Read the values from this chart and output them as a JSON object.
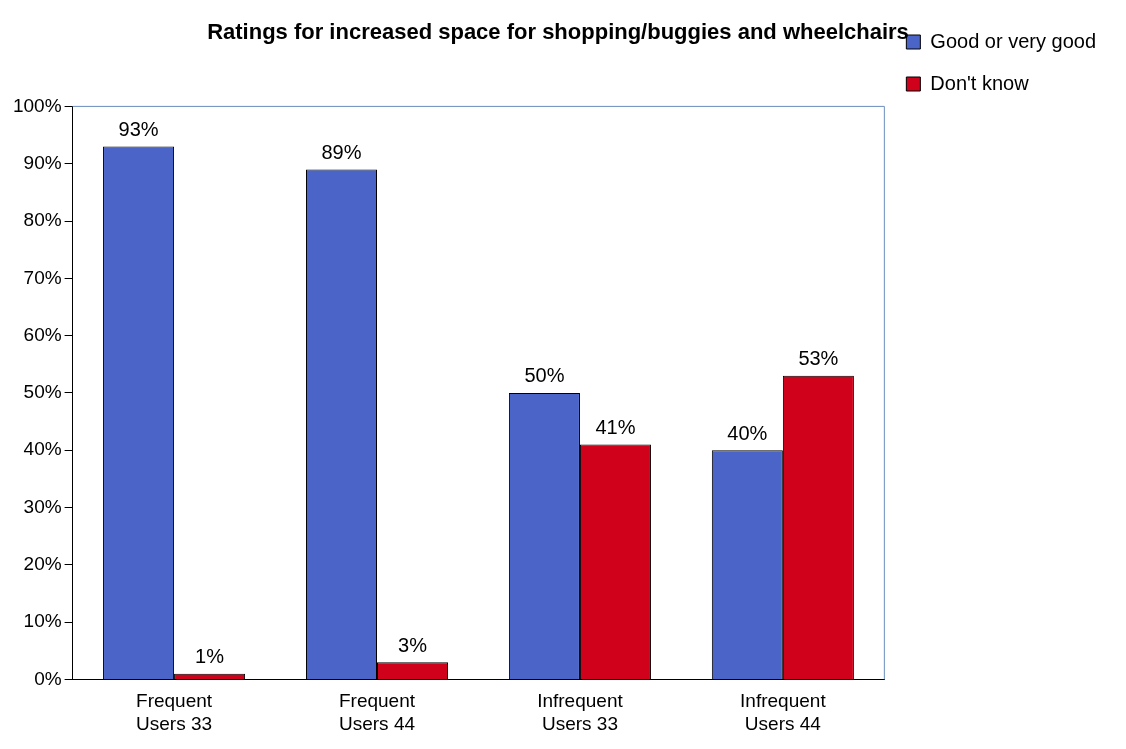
{
  "chart_data": {
    "type": "bar",
    "title": "Ratings for increased space for shopping/buggies and wheelchairs",
    "categories": [
      "Frequent Users 33",
      "Frequent Users 44",
      "Infrequent Users 33",
      "Infrequent Users 44"
    ],
    "series": [
      {
        "name": "Good or very good",
        "color": "#4a64c8",
        "values": [
          93,
          89,
          50,
          40
        ],
        "value_labels": [
          "93%",
          "89%",
          "50%",
          "40%"
        ]
      },
      {
        "name": "Don't know",
        "color": "#d0021b",
        "values": [
          1,
          3,
          41,
          53
        ],
        "value_labels": [
          "1%",
          "3%",
          "41%",
          "53%"
        ]
      }
    ],
    "ylim": [
      0,
      100
    ],
    "yticks": [
      {
        "value": 0,
        "label": "0%"
      },
      {
        "value": 10,
        "label": "10%"
      },
      {
        "value": 20,
        "label": "20%"
      },
      {
        "value": 30,
        "label": "30%"
      },
      {
        "value": 40,
        "label": "40%"
      },
      {
        "value": 50,
        "label": "50%"
      },
      {
        "value": 60,
        "label": "60%"
      },
      {
        "value": 70,
        "label": "70%"
      },
      {
        "value": 80,
        "label": "80%"
      },
      {
        "value": 90,
        "label": "90%"
      },
      {
        "value": 100,
        "label": "100%"
      }
    ],
    "grid": false,
    "legend": "top right"
  }
}
